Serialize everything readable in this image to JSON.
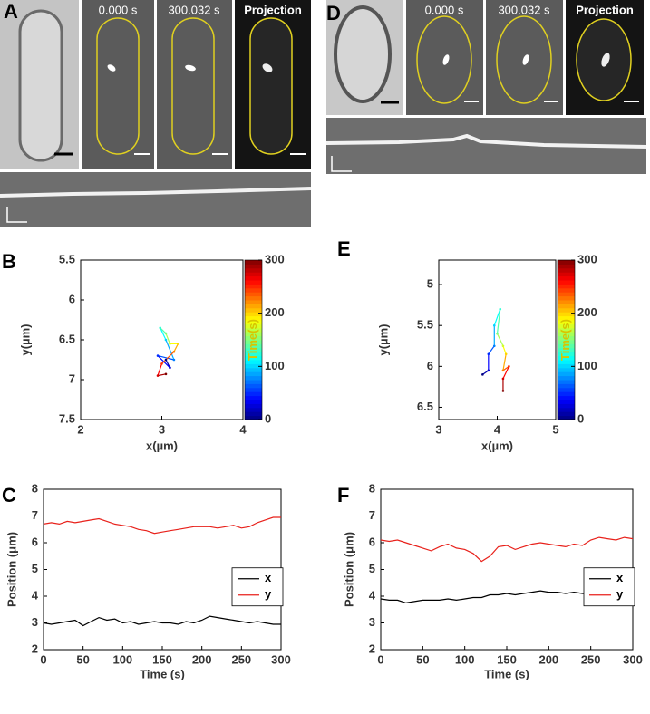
{
  "panels": {
    "A": {
      "label": "A",
      "frames": [
        "0.000 s",
        "300.032 s",
        "Projection"
      ]
    },
    "D": {
      "label": "D",
      "frames": [
        "0.000 s",
        "300.032 s",
        "Projection"
      ]
    }
  },
  "chart_data": [
    {
      "type": "trajectory",
      "label": "B",
      "xlabel": "x(µm)",
      "ylabel": "y(µm)",
      "xlim": [
        2,
        4
      ],
      "xticks": [
        2,
        3,
        4
      ],
      "ylim": [
        7.5,
        5.5
      ],
      "yticks": [
        5.5,
        6,
        6.5,
        7,
        7.5
      ],
      "colormap": "jet",
      "colorbar": {
        "label": "Time(s)",
        "lim": [
          0,
          300
        ],
        "ticks": [
          0,
          100,
          200,
          300
        ]
      },
      "time": [
        0,
        25,
        50,
        75,
        100,
        125,
        150,
        175,
        200,
        225,
        250,
        275,
        300
      ],
      "x": [
        3.05,
        3.1,
        2.95,
        3.15,
        3.05,
        2.98,
        3.05,
        3.1,
        3.2,
        3.15,
        3.0,
        2.95,
        3.05
      ],
      "values": [
        6.75,
        6.85,
        6.7,
        6.75,
        6.5,
        6.35,
        6.42,
        6.55,
        6.55,
        6.65,
        6.8,
        6.95,
        6.93
      ]
    },
    {
      "type": "line",
      "label": "C",
      "xlabel": "Time (s)",
      "ylabel": "Position (μm)",
      "xlim": [
        0,
        300
      ],
      "xticks": [
        0,
        50,
        100,
        150,
        200,
        250,
        300
      ],
      "ylim": [
        2,
        8
      ],
      "yticks": [
        2,
        3,
        4,
        5,
        6,
        7,
        8
      ],
      "legend": "right",
      "x": [
        0,
        10,
        20,
        30,
        40,
        50,
        60,
        70,
        80,
        90,
        100,
        110,
        120,
        130,
        140,
        150,
        160,
        170,
        180,
        190,
        200,
        210,
        220,
        230,
        240,
        250,
        260,
        270,
        280,
        290,
        300
      ],
      "series": [
        {
          "name": "x",
          "color": "#000000",
          "values": [
            3.0,
            2.95,
            3.0,
            3.05,
            3.1,
            2.9,
            3.05,
            3.2,
            3.1,
            3.15,
            3.0,
            3.05,
            2.95,
            3.0,
            3.05,
            3.0,
            3.0,
            2.95,
            3.05,
            3.0,
            3.1,
            3.25,
            3.2,
            3.15,
            3.1,
            3.05,
            3.0,
            3.05,
            3.0,
            2.95,
            2.95
          ]
        },
        {
          "name": "y",
          "color": "#e8211b",
          "values": [
            6.7,
            6.75,
            6.7,
            6.8,
            6.75,
            6.8,
            6.85,
            6.9,
            6.8,
            6.7,
            6.65,
            6.6,
            6.5,
            6.45,
            6.35,
            6.4,
            6.45,
            6.5,
            6.55,
            6.6,
            6.6,
            6.6,
            6.55,
            6.6,
            6.65,
            6.55,
            6.6,
            6.75,
            6.85,
            6.95,
            6.95
          ]
        }
      ]
    },
    {
      "type": "trajectory",
      "label": "E",
      "xlabel": "x(µm)",
      "ylabel": "y(µm)",
      "xlim": [
        3,
        5
      ],
      "xticks": [
        3,
        4,
        5
      ],
      "ylim": [
        6.65,
        4.7
      ],
      "yticks": [
        5,
        5.5,
        6,
        6.5
      ],
      "colormap": "jet",
      "colorbar": {
        "label": "Time(s)",
        "lim": [
          0,
          300
        ],
        "ticks": [
          0,
          100,
          200,
          300
        ]
      },
      "time": [
        0,
        25,
        50,
        75,
        100,
        125,
        150,
        175,
        200,
        225,
        250,
        275,
        300
      ],
      "x": [
        3.75,
        3.85,
        3.85,
        3.95,
        3.95,
        4.05,
        4.0,
        4.1,
        4.15,
        4.1,
        4.2,
        4.1,
        4.1
      ],
      "values": [
        6.1,
        6.05,
        5.85,
        5.75,
        5.5,
        5.3,
        5.6,
        5.75,
        5.85,
        6.05,
        6.0,
        6.15,
        6.3
      ]
    },
    {
      "type": "line",
      "label": "F",
      "xlabel": "Time (s)",
      "ylabel": "Position (μm)",
      "xlim": [
        0,
        300
      ],
      "xticks": [
        0,
        50,
        100,
        150,
        200,
        250,
        300
      ],
      "ylim": [
        2,
        8
      ],
      "yticks": [
        2,
        3,
        4,
        5,
        6,
        7,
        8
      ],
      "legend": "right",
      "x": [
        0,
        10,
        20,
        30,
        40,
        50,
        60,
        70,
        80,
        90,
        100,
        110,
        120,
        130,
        140,
        150,
        160,
        170,
        180,
        190,
        200,
        210,
        220,
        230,
        240,
        250,
        260,
        270,
        280,
        290,
        300
      ],
      "series": [
        {
          "name": "x",
          "color": "#000000",
          "values": [
            3.9,
            3.85,
            3.85,
            3.75,
            3.8,
            3.85,
            3.85,
            3.85,
            3.9,
            3.85,
            3.9,
            3.95,
            3.95,
            4.05,
            4.05,
            4.1,
            4.05,
            4.1,
            4.15,
            4.2,
            4.15,
            4.15,
            4.1,
            4.15,
            4.1,
            4.1,
            4.05,
            4.1,
            4.05,
            4.0,
            4.0
          ]
        },
        {
          "name": "y",
          "color": "#e8211b",
          "values": [
            6.1,
            6.05,
            6.1,
            6.0,
            5.9,
            5.8,
            5.7,
            5.85,
            5.95,
            5.8,
            5.75,
            5.6,
            5.3,
            5.5,
            5.85,
            5.9,
            5.75,
            5.85,
            5.95,
            6.0,
            5.95,
            5.9,
            5.85,
            5.95,
            5.9,
            6.1,
            6.2,
            6.15,
            6.1,
            6.2,
            6.15
          ]
        }
      ]
    }
  ]
}
